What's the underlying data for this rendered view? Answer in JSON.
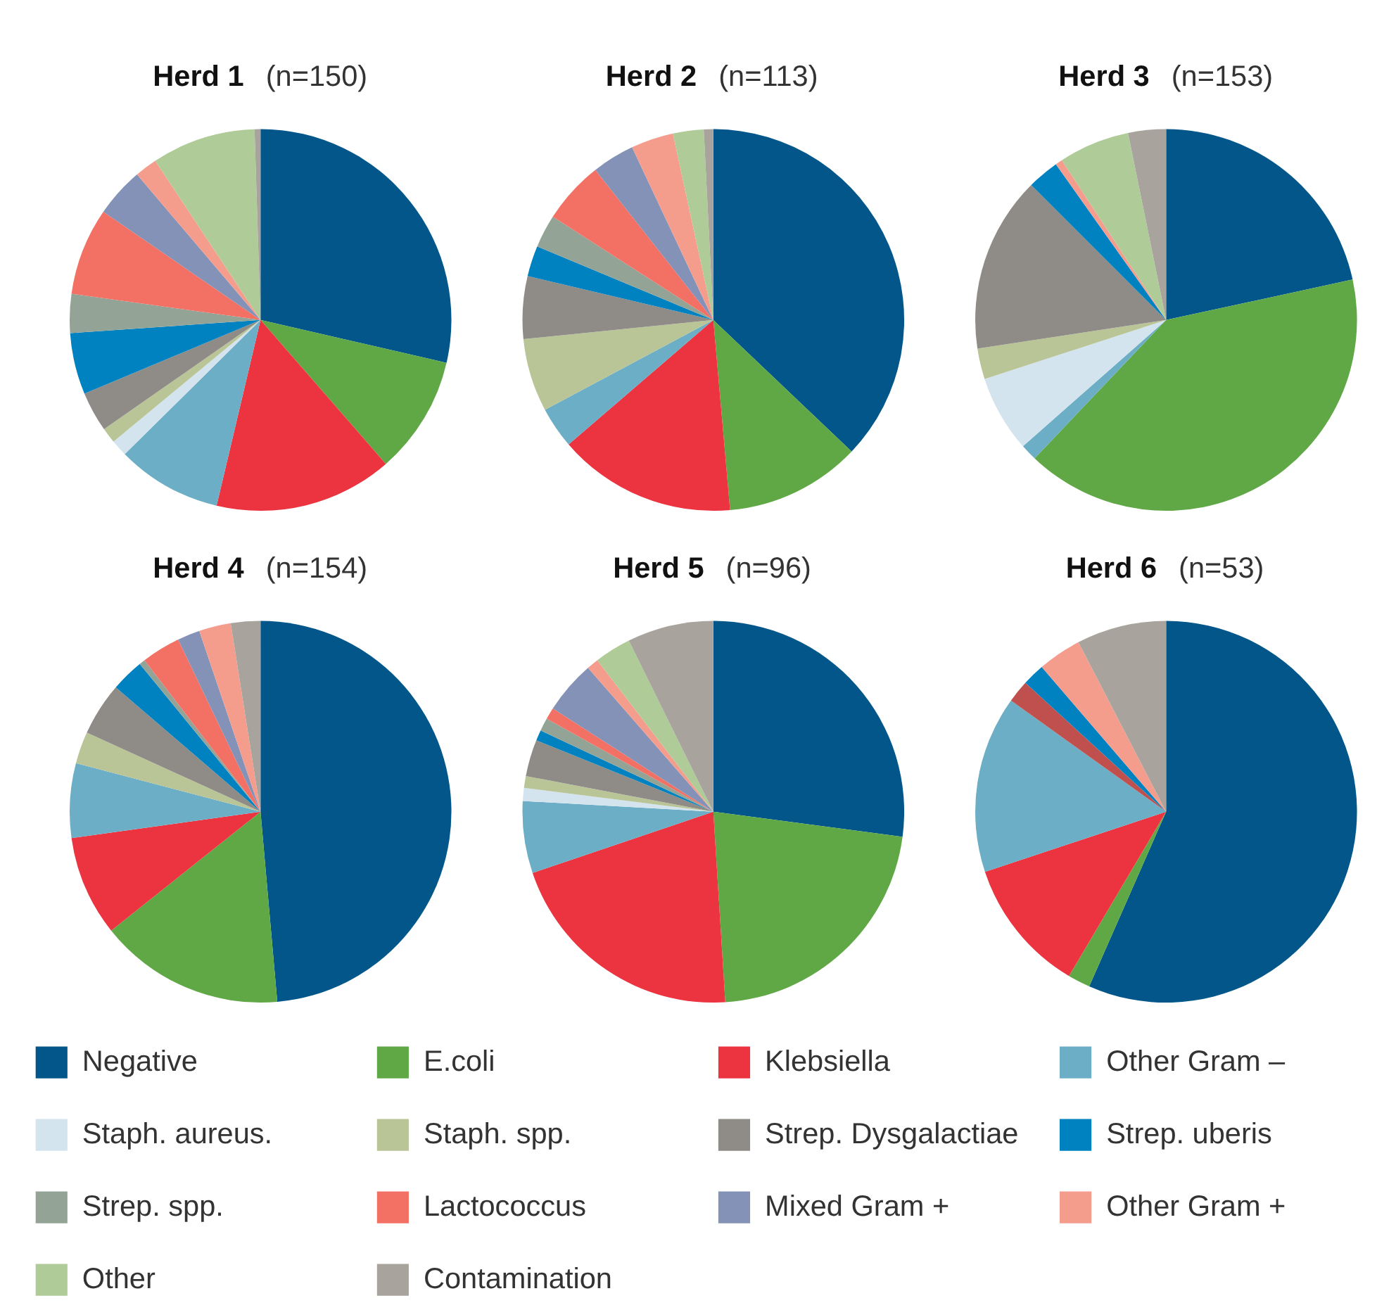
{
  "chart_data": [
    {
      "type": "pie",
      "title": "Herd 1",
      "subtitle": "(n=150)",
      "legend": "bottom",
      "categories": [
        "Negative",
        "E.coli",
        "Klebsiella",
        "Other Gram –",
        "Staph. aureus.",
        "Staph. spp.",
        "Strep. Dysgalactiae",
        "Strep. uberis",
        "Strep. spp.",
        "Lactococcus",
        "Mixed Gram +",
        "Other Gram +",
        "Other",
        "Contamination"
      ],
      "values": [
        28.6,
        10.0,
        15.1,
        8.9,
        1.4,
        1.3,
        3.4,
        5.2,
        3.3,
        7.4,
        4.2,
        1.9,
        8.8,
        0.5
      ],
      "colors": [
        "#02568a",
        "#5fa845",
        "#ec3340",
        "#6baec6",
        "#d3e4ee",
        "#b9c497",
        "#8f8b86",
        "#0082c0",
        "#93a497",
        "#f37064",
        "#8392b6",
        "#f59d8d",
        "#aecb98",
        "#a8a39d"
      ]
    },
    {
      "type": "pie",
      "title": "Herd 2",
      "subtitle": "(n=113)",
      "categories": [
        null,
        null,
        null,
        null,
        null,
        null,
        null,
        null,
        null,
        null,
        null,
        null,
        null,
        null
      ],
      "values": [
        37.1,
        11.5,
        15.1,
        3.5,
        0,
        6.2,
        5.3,
        2.6,
        2.8,
        5.3,
        3.6,
        3.6,
        2.6,
        0.8
      ],
      "colors": [
        "#02568a",
        "#5fa845",
        "#ec3340",
        "#6baec6",
        "#d3e4ee",
        "#b9c497",
        "#8f8b86",
        "#0082c0",
        "#93a497",
        "#f37064",
        "#8392b6",
        "#f59d8d",
        "#aecb98",
        "#a8a39d"
      ]
    },
    {
      "type": "pie",
      "title": "Herd 3",
      "subtitle": "(n=153)",
      "categories": [
        null,
        null,
        null,
        null,
        null,
        null,
        null,
        null,
        null,
        null,
        null,
        null,
        null,
        null
      ],
      "values": [
        21.6,
        40.5,
        0,
        1.4,
        6.5,
        2.6,
        14.9,
        2.7,
        0,
        0,
        0,
        0.6,
        6.0,
        3.2
      ],
      "colors": [
        "#02568a",
        "#5fa845",
        "#ec3340",
        "#6baec6",
        "#d3e4ee",
        "#b9c497",
        "#8f8b86",
        "#0082c0",
        "#93a497",
        "#f37064",
        "#8392b6",
        "#f59d8d",
        "#aecb98",
        "#a8a39d"
      ]
    },
    {
      "type": "pie",
      "title": "Herd 4",
      "subtitle": "(n=154)",
      "categories": [
        null,
        null,
        null,
        null,
        null,
        null,
        null,
        null,
        null,
        null,
        null,
        null,
        null,
        null
      ],
      "values": [
        48.6,
        15.7,
        8.5,
        6.3,
        0,
        2.7,
        4.5,
        2.8,
        0.5,
        3.3,
        1.9,
        2.7,
        0,
        2.5
      ],
      "colors": [
        "#02568a",
        "#5fa845",
        "#ec3340",
        "#6baec6",
        "#d3e4ee",
        "#b9c497",
        "#8f8b86",
        "#0082c0",
        "#93a497",
        "#f37064",
        "#8392b6",
        "#f59d8d",
        "#aecb98",
        "#a8a39d"
      ]
    },
    {
      "type": "pie",
      "title": "Herd 5",
      "subtitle": "(n=96)",
      "categories": [
        null,
        null,
        null,
        null,
        null,
        null,
        null,
        null,
        null,
        null,
        null,
        null,
        null,
        null
      ],
      "values": [
        27.1,
        21.9,
        20.8,
        6.1,
        1.1,
        1.0,
        3.1,
        0.9,
        1.1,
        1.0,
        4.5,
        1.0,
        3.1,
        7.3
      ],
      "colors": [
        "#02568a",
        "#5fa845",
        "#ec3340",
        "#6baec6",
        "#d3e4ee",
        "#b9c497",
        "#8f8b86",
        "#0082c0",
        "#93a497",
        "#f37064",
        "#8392b6",
        "#f59d8d",
        "#aecb98",
        "#a8a39d"
      ]
    },
    {
      "type": "pie",
      "title": "Herd 6",
      "subtitle": "(n=53)",
      "categories": [
        null,
        null,
        null,
        null,
        null,
        null,
        null,
        null,
        null,
        null,
        null,
        null,
        null,
        null
      ],
      "values": [
        56.6,
        1.9,
        11.4,
        15.0,
        1.9,
        0,
        0,
        1.9,
        0,
        0,
        0,
        3.7,
        0,
        7.6
      ],
      "colors": [
        "#02568a",
        "#5fa845",
        "#ec3340",
        "#6baec6",
        "#c0504d",
        "#b9c497",
        "#8f8b86",
        "#0082c0",
        "#93a497",
        "#f37064",
        "#8392b6",
        "#f59d8d",
        "#aecb98",
        "#a8a39d"
      ]
    }
  ]
}
